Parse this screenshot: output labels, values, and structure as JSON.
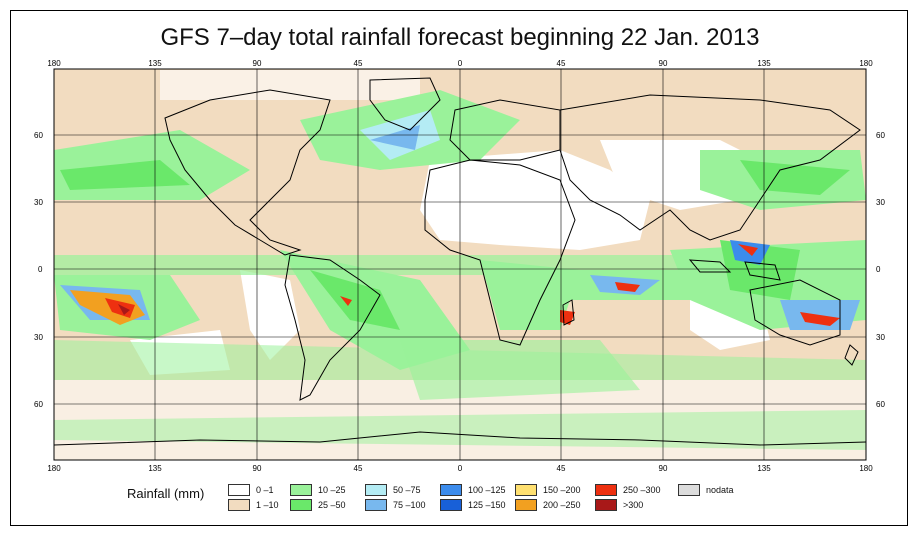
{
  "title": "GFS 7–day total rainfall forecast beginning 22 Jan. 2013",
  "lon_ticks": [
    "180",
    "135",
    "90",
    "45",
    "0",
    "45",
    "90",
    "135",
    "180"
  ],
  "lat_ticks_left": [
    "60",
    "30",
    "0",
    "30",
    "60"
  ],
  "lat_ticks_right": [
    "60",
    "30",
    "0",
    "30",
    "60"
  ],
  "legend": {
    "label": "Rainfall (mm)",
    "items": [
      {
        "text": "0 –1",
        "color": "#ffffff"
      },
      {
        "text": "1 –10",
        "color": "#f2dcc0"
      },
      {
        "text": "10 –25",
        "color": "#9af29a"
      },
      {
        "text": "25 –50",
        "color": "#6ae86a"
      },
      {
        "text": "50 –75",
        "color": "#b4ecf4"
      },
      {
        "text": "75 –100",
        "color": "#78b8ee"
      },
      {
        "text": "100 –125",
        "color": "#3c8cec"
      },
      {
        "text": "125 –150",
        "color": "#1860d8"
      },
      {
        "text": "150 –200",
        "color": "#ffe070"
      },
      {
        "text": "200 –250",
        "color": "#f2a020"
      },
      {
        "text": "250 –300",
        "color": "#ee3010"
      },
      {
        "text": ">300",
        "color": "#a81818"
      },
      {
        "text": "nodata",
        "color": "#dcdcdc"
      }
    ]
  }
}
